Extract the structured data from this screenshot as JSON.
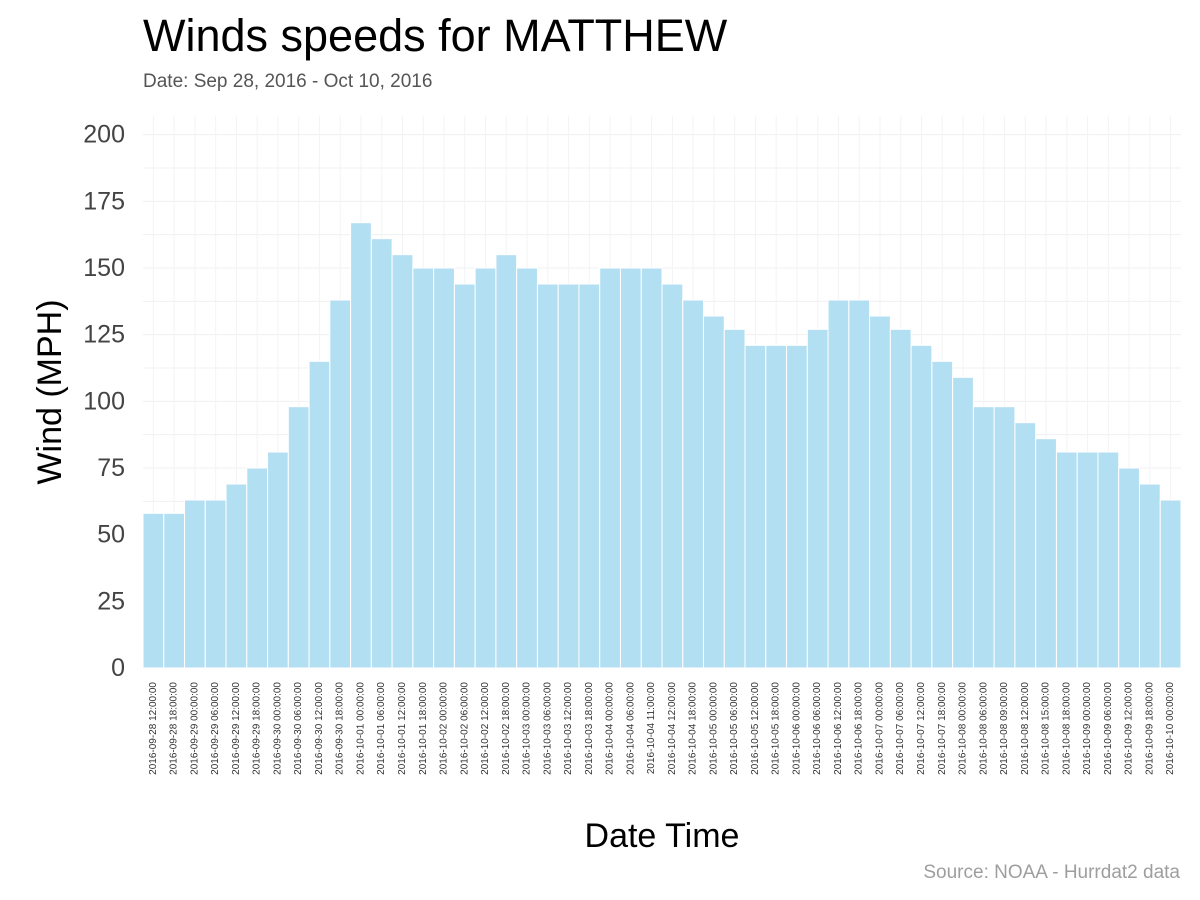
{
  "chart_data": {
    "type": "bar",
    "title": "Winds speeds for MATTHEW",
    "subtitle": "Date:  Sep 28, 2016 - Oct 10, 2016",
    "caption": "Source: NOAA - Hurrdat2 data",
    "xlabel": "Date Time",
    "ylabel": "Wind (MPH)",
    "ylim": [
      0,
      207
    ],
    "yticks": [
      0,
      25,
      50,
      75,
      100,
      125,
      150,
      175,
      200
    ],
    "grid": true,
    "bar_color": "#b3dff3",
    "categories": [
      "2016-09-28 12:00:00",
      "2016-09-28 18:00:00",
      "2016-09-29 00:00:00",
      "2016-09-29 06:00:00",
      "2016-09-29 12:00:00",
      "2016-09-29 18:00:00",
      "2016-09-30 00:00:00",
      "2016-09-30 06:00:00",
      "2016-09-30 12:00:00",
      "2016-09-30 18:00:00",
      "2016-10-01 00:00:00",
      "2016-10-01 06:00:00",
      "2016-10-01 12:00:00",
      "2016-10-01 18:00:00",
      "2016-10-02 00:00:00",
      "2016-10-02 06:00:00",
      "2016-10-02 12:00:00",
      "2016-10-02 18:00:00",
      "2016-10-03 00:00:00",
      "2016-10-03 06:00:00",
      "2016-10-03 12:00:00",
      "2016-10-03 18:00:00",
      "2016-10-04 00:00:00",
      "2016-10-04 06:00:00",
      "2016-10-04 11:00:00",
      "2016-10-04 12:00:00",
      "2016-10-04 18:00:00",
      "2016-10-05 00:00:00",
      "2016-10-05 06:00:00",
      "2016-10-05 12:00:00",
      "2016-10-05 18:00:00",
      "2016-10-06 00:00:00",
      "2016-10-06 06:00:00",
      "2016-10-06 12:00:00",
      "2016-10-06 18:00:00",
      "2016-10-07 00:00:00",
      "2016-10-07 06:00:00",
      "2016-10-07 12:00:00",
      "2016-10-07 18:00:00",
      "2016-10-08 00:00:00",
      "2016-10-08 06:00:00",
      "2016-10-08 09:00:00",
      "2016-10-08 12:00:00",
      "2016-10-08 15:00:00",
      "2016-10-08 18:00:00",
      "2016-10-09 00:00:00",
      "2016-10-09 06:00:00",
      "2016-10-09 12:00:00",
      "2016-10-09 18:00:00",
      "2016-10-10 00:00:00"
    ],
    "values": [
      58,
      58,
      63,
      63,
      69,
      75,
      81,
      98,
      115,
      138,
      167,
      161,
      155,
      150,
      150,
      144,
      150,
      155,
      150,
      144,
      144,
      144,
      150,
      150,
      150,
      144,
      138,
      132,
      127,
      121,
      121,
      121,
      127,
      138,
      138,
      132,
      127,
      121,
      115,
      109,
      98,
      98,
      92,
      86,
      81,
      81,
      81,
      75,
      69,
      63
    ]
  }
}
